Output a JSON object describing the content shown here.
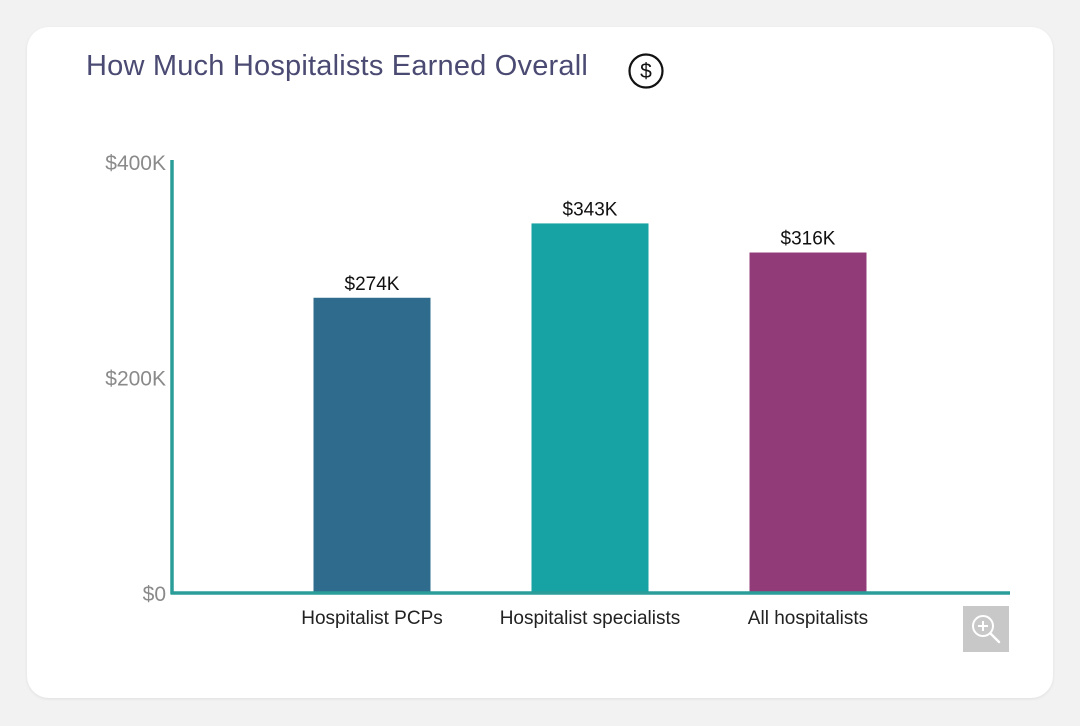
{
  "header": {
    "title": "How Much Hospitalists Earned Overall",
    "icon": "dollar-circle-icon"
  },
  "zoom_button": {
    "icon": "zoom-in-icon"
  },
  "colors": {
    "axis": "#2a9d98",
    "tick_text": "#8a8a8a",
    "bar_pcps": "#2e6b8c",
    "bar_specialists": "#17a2a3",
    "bar_all": "#913c79"
  },
  "chart_data": {
    "type": "bar",
    "title": "How Much Hospitalists Earned Overall",
    "xlabel": "",
    "ylabel": "",
    "categories": [
      "Hospitalist PCPs",
      "Hospitalist specialists",
      "All hospitalists"
    ],
    "values": [
      274,
      343,
      316
    ],
    "value_labels": [
      "$274K",
      "$343K",
      "$316K"
    ],
    "bar_colors": [
      "#2e6b8c",
      "#17a2a3",
      "#913c79"
    ],
    "ylim": [
      0,
      400
    ],
    "yticks": [
      0,
      200,
      400
    ],
    "ytick_labels": [
      "$0",
      "$200K",
      "$400K"
    ],
    "grid": false,
    "legend": "none"
  }
}
